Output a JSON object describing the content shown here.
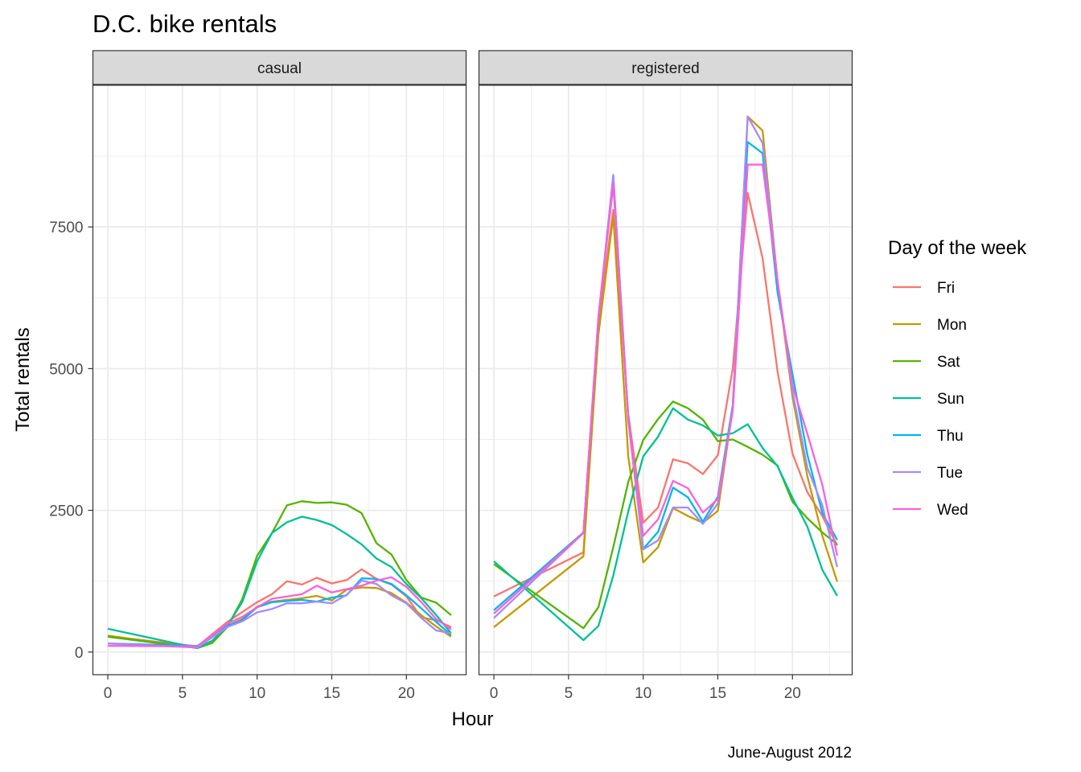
{
  "chart_data": {
    "type": "line",
    "title": "D.C. bike rentals",
    "caption": "June-August 2012",
    "xlabel": "Hour",
    "ylabel": "Total rentals",
    "xlim": [
      -1,
      24
    ],
    "ylim": [
      -400,
      10000
    ],
    "xticks": [
      0,
      5,
      10,
      15,
      20
    ],
    "yticks": [
      0,
      2500,
      5000,
      7500
    ],
    "grid": true,
    "legend": {
      "title": "Day of the week",
      "position": "right"
    },
    "colors": {
      "Fri": "#F8766D",
      "Mon": "#C49A00",
      "Sat": "#53B400",
      "Sun": "#00C094",
      "Thu": "#00B6EB",
      "Tue": "#A58AFF",
      "Wed": "#FB61D7"
    },
    "panels": [
      {
        "name": "casual",
        "series": [
          {
            "name": "Fri",
            "x": [
              0,
              6,
              8,
              10,
              11,
              12,
              13,
              14,
              15,
              16,
              17,
              18,
              19,
              20,
              21,
              22,
              23
            ],
            "y": [
              280,
              100,
              530,
              880,
              1020,
              1250,
              1190,
              1310,
              1210,
              1270,
              1460,
              1290,
              1190,
              980,
              610,
              560,
              440
            ]
          },
          {
            "name": "Mon",
            "x": [
              0,
              6,
              7,
              8,
              9,
              10,
              11,
              12,
              13,
              14,
              15,
              16,
              17,
              18,
              19,
              20,
              21,
              22,
              23
            ],
            "y": [
              290,
              70,
              190,
              460,
              580,
              800,
              890,
              920,
              950,
              990,
              910,
              1100,
              1140,
              1130,
              1040,
              870,
              650,
              450,
              270
            ]
          },
          {
            "name": "Sat",
            "x": [
              0,
              6,
              7,
              8,
              9,
              10,
              11,
              12,
              13,
              14,
              15,
              16,
              17,
              18,
              19,
              20,
              21,
              22,
              23
            ],
            "y": [
              270,
              70,
              160,
              440,
              930,
              1700,
              2100,
              2590,
              2660,
              2630,
              2640,
              2600,
              2450,
              1920,
              1720,
              1270,
              960,
              870,
              650
            ]
          },
          {
            "name": "Sun",
            "x": [
              0,
              6,
              7,
              8,
              9,
              10,
              11,
              12,
              13,
              14,
              15,
              16,
              17,
              18,
              19,
              20,
              21,
              22,
              23
            ],
            "y": [
              410,
              70,
              200,
              460,
              880,
              1600,
              2100,
              2290,
              2390,
              2330,
              2240,
              2080,
              1900,
              1650,
              1500,
              1200,
              950,
              650,
              330
            ]
          },
          {
            "name": "Thu",
            "x": [
              0,
              6,
              8,
              9,
              10,
              11,
              12,
              13,
              14,
              15,
              16,
              17,
              18,
              19,
              20,
              21,
              22,
              23
            ],
            "y": [
              150,
              110,
              460,
              560,
              790,
              880,
              900,
              920,
              890,
              960,
              1000,
              1300,
              1290,
              1200,
              1000,
              770,
              530,
              300
            ]
          },
          {
            "name": "Tue",
            "x": [
              0,
              6,
              8,
              9,
              10,
              11,
              12,
              13,
              14,
              15,
              16,
              17,
              18,
              19,
              20,
              21,
              22,
              23
            ],
            "y": [
              150,
              80,
              440,
              540,
              700,
              760,
              860,
              860,
              890,
              860,
              1010,
              1260,
              1200,
              1000,
              860,
              600,
              380,
              330
            ]
          },
          {
            "name": "Wed",
            "x": [
              0,
              6,
              8,
              9,
              10,
              11,
              12,
              13,
              14,
              15,
              16,
              17,
              18,
              19,
              20,
              21,
              22,
              23
            ],
            "y": [
              110,
              100,
              500,
              620,
              790,
              940,
              980,
              1020,
              1170,
              1050,
              1110,
              1170,
              1260,
              1320,
              1150,
              880,
              580,
              400
            ]
          }
        ]
      },
      {
        "name": "registered",
        "series": [
          {
            "name": "Fri",
            "x": [
              0,
              6,
              7,
              8,
              9,
              10,
              11,
              12,
              13,
              14,
              15,
              16,
              17,
              18,
              19,
              20,
              21,
              22,
              23
            ],
            "y": [
              980,
              1760,
              5800,
              7800,
              4200,
              2280,
              2550,
              3400,
              3330,
              3140,
              3470,
              5000,
              8100,
              6950,
              4950,
              3500,
              2820,
              2400,
              1880
            ]
          },
          {
            "name": "Mon",
            "x": [
              0,
              6,
              7,
              8,
              9,
              10,
              11,
              12,
              13,
              14,
              15,
              16,
              17,
              18,
              19,
              20,
              21,
              22,
              23
            ],
            "y": [
              440,
              1690,
              5600,
              7700,
              3450,
              1580,
              1850,
              2540,
              2400,
              2280,
              2490,
              4300,
              9450,
              9200,
              6550,
              4500,
              3100,
              2050,
              1240
            ]
          },
          {
            "name": "Sat",
            "x": [
              0,
              6,
              7,
              8,
              9,
              10,
              11,
              12,
              13,
              14,
              15,
              16,
              17,
              18,
              19,
              20,
              21,
              22,
              23
            ],
            "y": [
              1550,
              420,
              790,
              1850,
              3000,
              3740,
              4110,
              4420,
              4300,
              4100,
              3720,
              3750,
              3620,
              3480,
              3290,
              2650,
              2360,
              2110,
              1900
            ]
          },
          {
            "name": "Sun",
            "x": [
              0,
              6,
              7,
              8,
              9,
              10,
              11,
              12,
              13,
              14,
              15,
              16,
              17,
              18,
              19,
              20,
              21,
              22,
              23
            ],
            "y": [
              1600,
              210,
              460,
              1350,
              2480,
              3450,
              3800,
              4300,
              4100,
              4000,
              3820,
              3860,
              4020,
              3600,
              3280,
              2720,
              2210,
              1450,
              990
            ]
          },
          {
            "name": "Thu",
            "x": [
              0,
              6,
              7,
              8,
              9,
              10,
              11,
              12,
              13,
              14,
              15,
              16,
              17,
              18,
              19,
              20,
              21,
              22,
              23
            ],
            "y": [
              740,
              2110,
              5870,
              8400,
              4150,
              1820,
              2120,
              2900,
              2730,
              2300,
              2740,
              4350,
              9000,
              8800,
              6350,
              4900,
              3480,
              2450,
              1980
            ]
          },
          {
            "name": "Tue",
            "x": [
              0,
              6,
              7,
              8,
              9,
              10,
              11,
              12,
              13,
              14,
              15,
              16,
              17,
              18,
              19,
              20,
              21,
              22,
              23
            ],
            "y": [
              600,
              2100,
              5900,
              8420,
              4080,
              1810,
              1970,
              2550,
              2550,
              2260,
              2620,
              4300,
              9450,
              8980,
              6560,
              4600,
              3250,
              2590,
              1500
            ]
          },
          {
            "name": "Wed",
            "x": [
              0,
              6,
              7,
              8,
              9,
              10,
              11,
              12,
              13,
              14,
              15,
              16,
              17,
              18,
              19,
              20,
              21,
              22,
              23
            ],
            "y": [
              680,
              2100,
              5920,
              8240,
              4100,
              2050,
              2340,
              3020,
              2890,
              2460,
              2700,
              4250,
              8600,
              8600,
              6550,
              4700,
              3850,
              2950,
              1700
            ]
          }
        ]
      }
    ]
  }
}
